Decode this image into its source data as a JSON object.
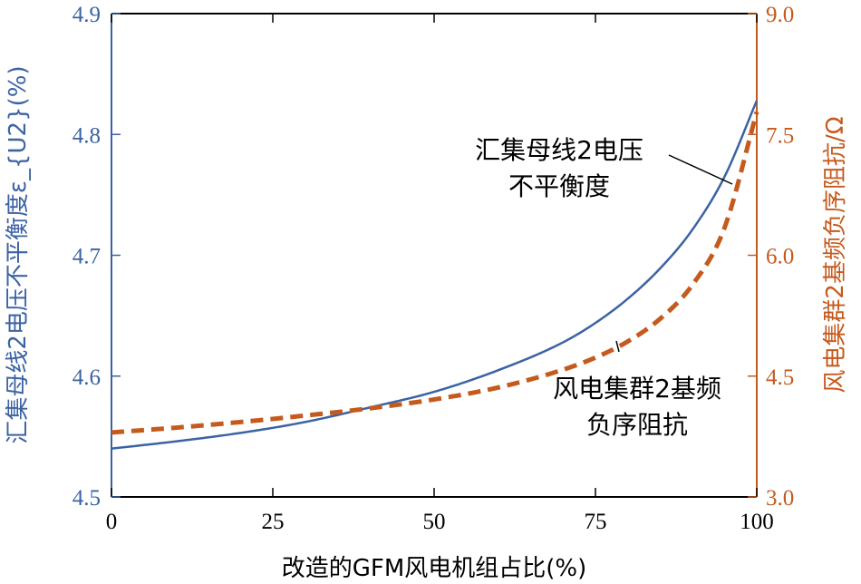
{
  "chart_data": {
    "type": "line",
    "xlabel": "改造的GFM风电机组占比(%)",
    "ylabel_left": "汇集母线2电压不平衡度ε_{U2}(%)",
    "ylabel_right": "风电集群2基频负序阻抗/Ω",
    "xlim": [
      0,
      100
    ],
    "ylim_left": [
      4.5,
      4.9
    ],
    "ylim_right": [
      3.0,
      9.0
    ],
    "x_ticks": [
      "0",
      "25",
      "50",
      "75",
      "100"
    ],
    "y_ticks_left": [
      "4.5",
      "4.6",
      "4.7",
      "4.8",
      "4.9"
    ],
    "y_ticks_right": [
      "3.0",
      "4.5",
      "6.0",
      "7.5",
      "9.0"
    ],
    "grid": false,
    "series": [
      {
        "axis": "left",
        "style": "solid",
        "color": "#3b63a3",
        "x": [
          0,
          10,
          20,
          30,
          40,
          50,
          60,
          70,
          75,
          80,
          85,
          90,
          95,
          100
        ],
        "y": [
          4.54,
          4.546,
          4.553,
          4.562,
          4.574,
          4.587,
          4.605,
          4.628,
          4.644,
          4.664,
          4.689,
          4.721,
          4.765,
          4.828
        ]
      },
      {
        "axis": "right",
        "style": "dashed",
        "color": "#c55a1e",
        "x": [
          0,
          10,
          20,
          30,
          40,
          50,
          60,
          70,
          75,
          80,
          85,
          90,
          95,
          100
        ],
        "y": [
          3.8,
          3.86,
          3.93,
          4.01,
          4.1,
          4.21,
          4.36,
          4.58,
          4.73,
          4.93,
          5.21,
          5.63,
          6.34,
          7.78
        ]
      }
    ],
    "annotations": [
      {
        "lines": [
          "汇集母线2电压",
          "不平衡度"
        ],
        "points_to": "solid"
      },
      {
        "lines": [
          "风电集群2基频",
          "负序阻抗"
        ],
        "points_to": "dashed"
      }
    ],
    "colors": {
      "left_axis": "#3b63a3",
      "right_axis": "#c55a1e",
      "axes": "#000000"
    }
  }
}
